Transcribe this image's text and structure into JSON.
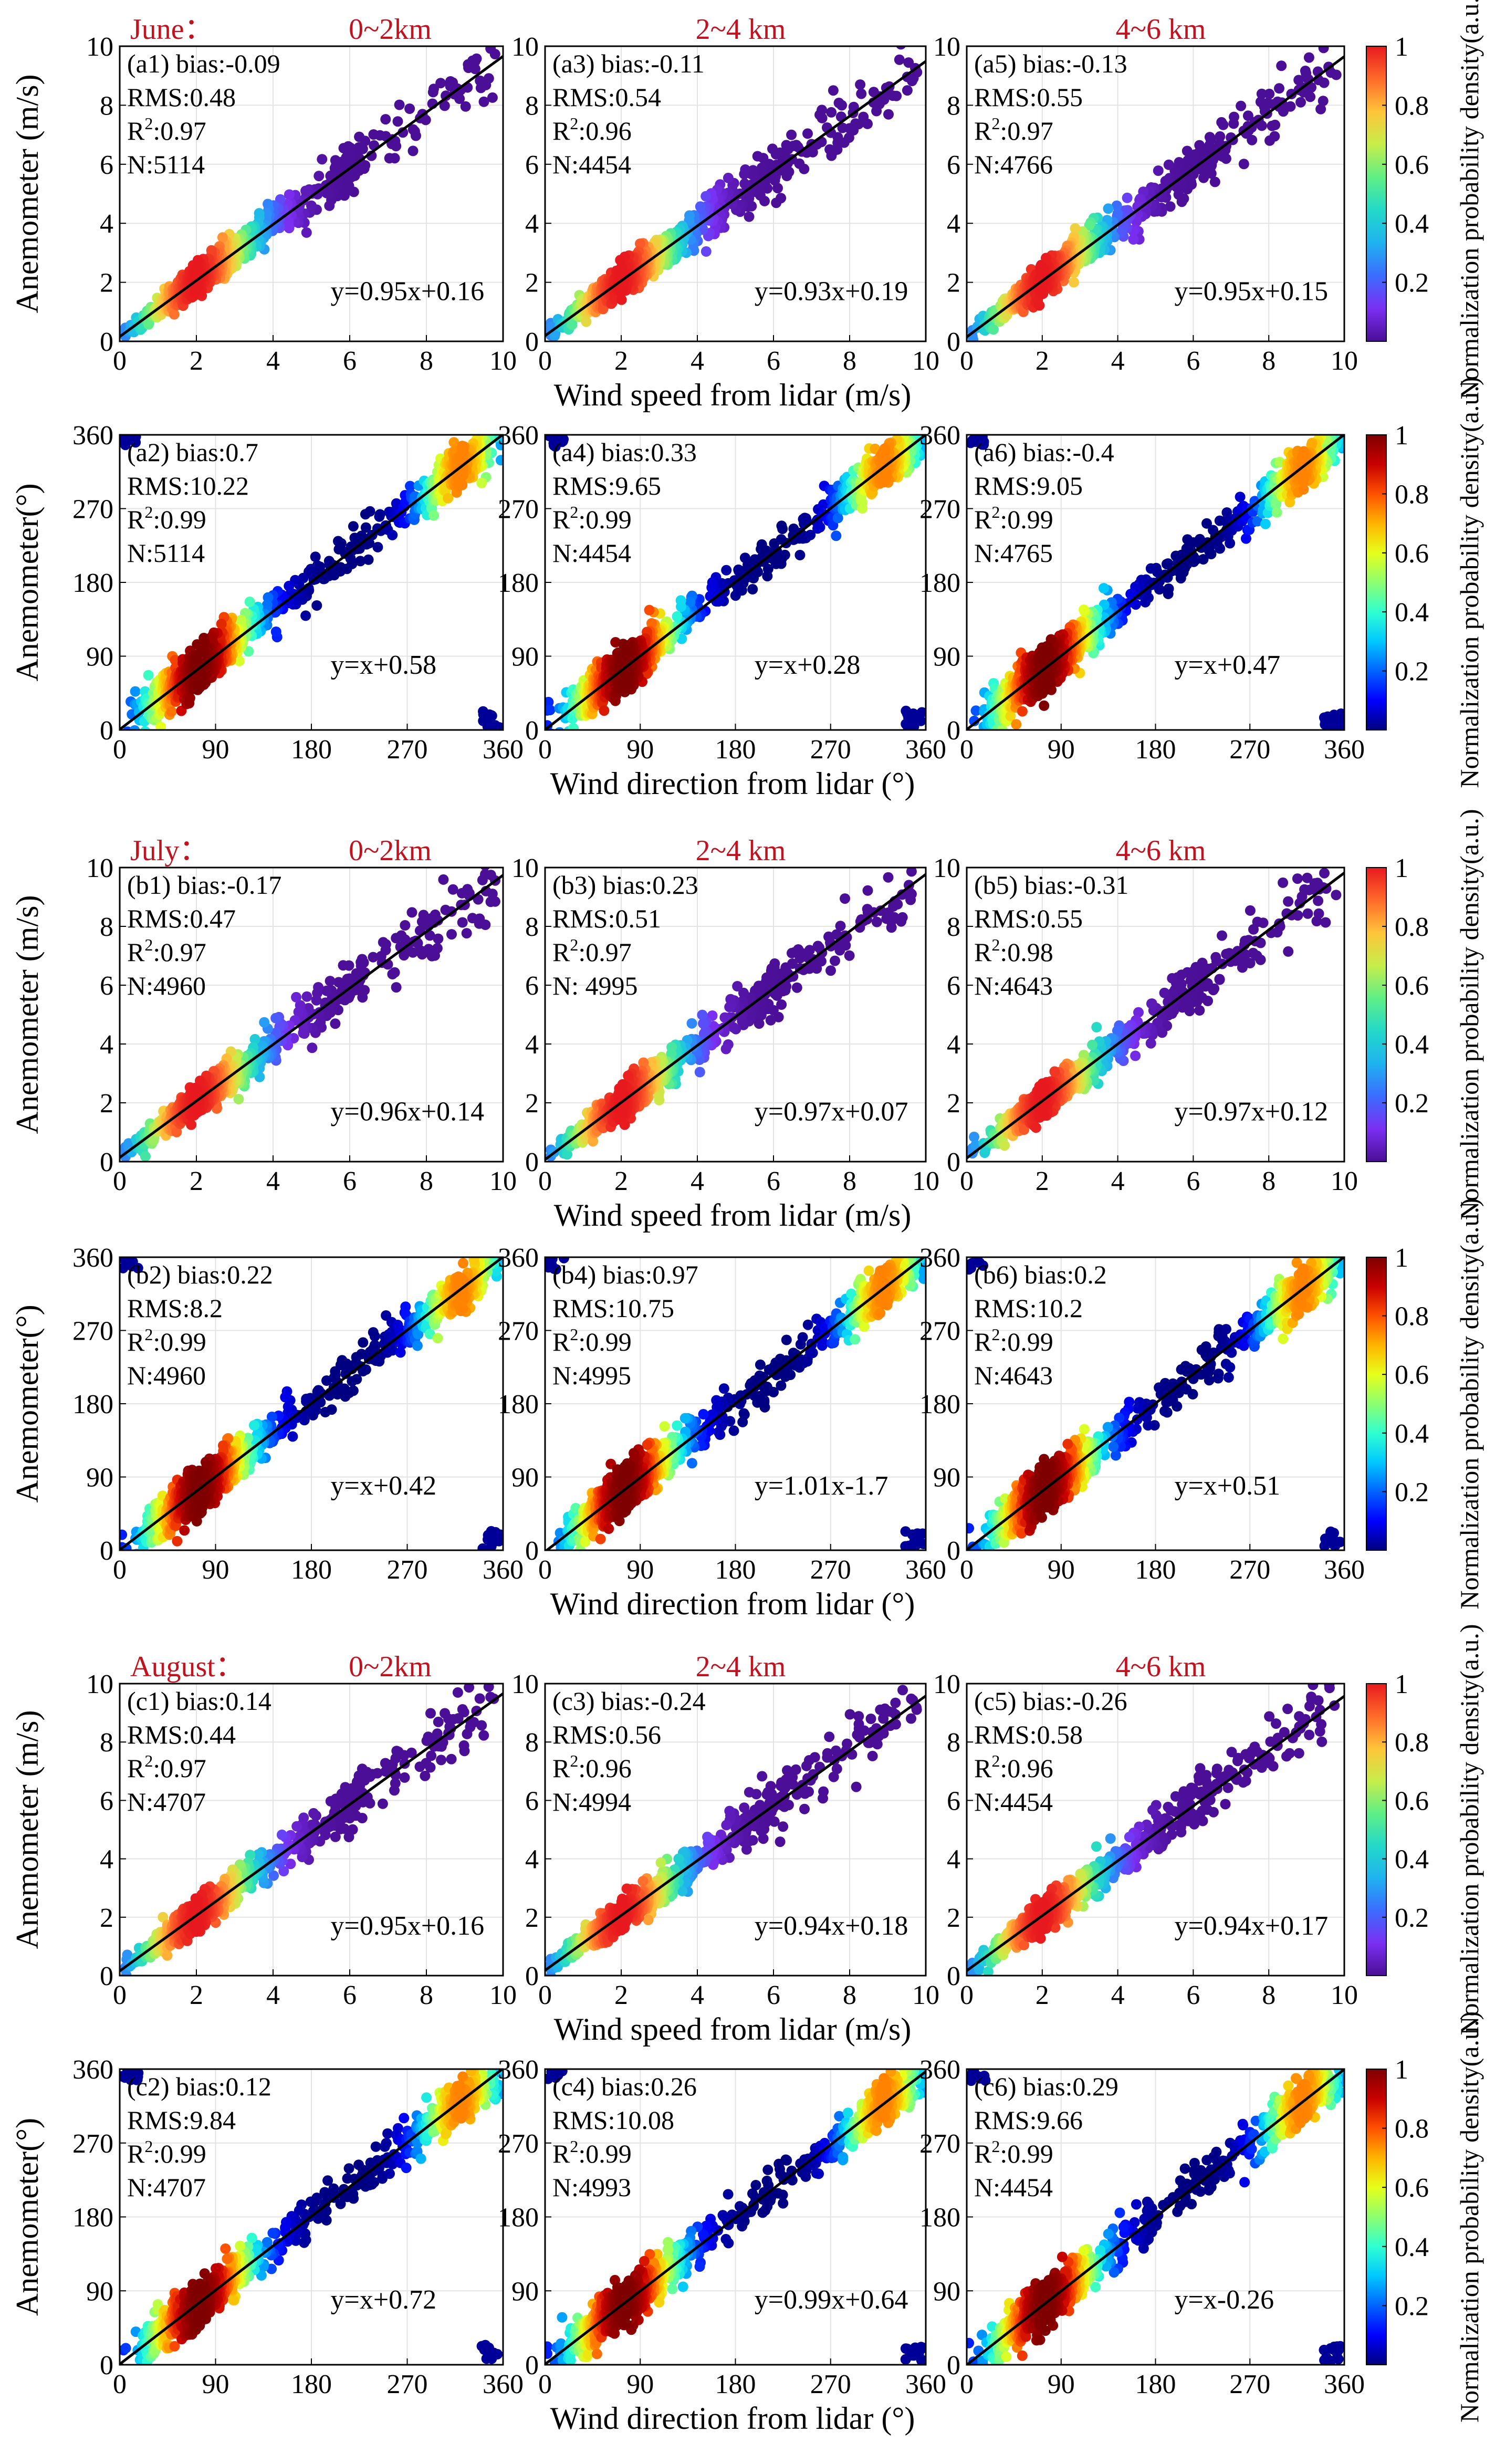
{
  "colors": {
    "cmap_speed": [
      "#4b0e96",
      "#7b2ff2",
      "#3b6cff",
      "#1fb2f0",
      "#23d9c9",
      "#5fef86",
      "#c6ee4a",
      "#ffc43a",
      "#ff6a2a",
      "#e8191e"
    ],
    "cmap_dir": [
      "#00007f",
      "#0000ff",
      "#0064ff",
      "#00c8ff",
      "#30ffd0",
      "#8cff70",
      "#e6ff1a",
      "#ffb400",
      "#ff5000",
      "#c80000",
      "#7f0000"
    ],
    "title_red": "#c1121f",
    "fit_line": "#000000"
  },
  "chart_data": [
    {
      "id": "a1",
      "type": "scatter",
      "variable": "speed",
      "month": "June",
      "layer": "0~2km",
      "header": "June：",
      "title": "0~2km",
      "stats": {
        "panel": "(a1)",
        "bias": "-0.09",
        "rms": "0.48",
        "r2": "0.97",
        "n": "5114"
      },
      "fit": {
        "slope": 0.95,
        "intercept": 0.16,
        "label": "y=0.95x+0.16"
      },
      "xlim": [
        0,
        10
      ],
      "ylim": [
        0,
        10
      ],
      "ticks": [
        0,
        2,
        4,
        6,
        8,
        10
      ],
      "xlabel": "Wind speed from lidar (m/s)",
      "ylabel": "Anemometer (m/s)",
      "colorbar": {
        "ticks": [
          "1",
          "0.8",
          "0.6",
          "0.4",
          "0.2"
        ],
        "label": "Normalization probability density(a.u.)"
      }
    },
    {
      "id": "a3",
      "type": "scatter",
      "variable": "speed",
      "month": "June",
      "layer": "2~4 km",
      "title": "2~4 km",
      "stats": {
        "panel": "(a3)",
        "bias": "-0.11",
        "rms": "0.54",
        "r2": "0.96",
        "n": "4454"
      },
      "fit": {
        "slope": 0.93,
        "intercept": 0.19,
        "label": "y=0.93x+0.19"
      },
      "xlim": [
        0,
        10
      ],
      "ylim": [
        0,
        10
      ],
      "ticks": [
        0,
        2,
        4,
        6,
        8,
        10
      ]
    },
    {
      "id": "a5",
      "type": "scatter",
      "variable": "speed",
      "month": "June",
      "layer": "4~6 km",
      "title": "4~6  km",
      "stats": {
        "panel": "(a5)",
        "bias": "-0.13",
        "rms": "0.55",
        "r2": "0.97",
        "n": "4766"
      },
      "fit": {
        "slope": 0.95,
        "intercept": 0.15,
        "label": "y=0.95x+0.15"
      },
      "xlim": [
        0,
        10
      ],
      "ylim": [
        0,
        10
      ],
      "ticks": [
        0,
        2,
        4,
        6,
        8,
        10
      ]
    },
    {
      "id": "a2",
      "type": "scatter",
      "variable": "direction",
      "month": "June",
      "layer": "0~2km",
      "stats": {
        "panel": "(a2)",
        "bias": "0.7",
        "rms": "10.22",
        "r2": "0.99",
        "n": "5114"
      },
      "fit": {
        "slope": 1.0,
        "intercept": 0.58,
        "label": "y=x+0.58"
      },
      "xlim": [
        0,
        360
      ],
      "ylim": [
        0,
        360
      ],
      "ticks": [
        0,
        90,
        180,
        270,
        360
      ],
      "xlabel": "Wind direction from lidar (°)",
      "ylabel": "Anemometer(°)",
      "colorbar": {
        "ticks": [
          "1",
          "0.8",
          "0.6",
          "0.4",
          "0.2"
        ],
        "label": "Normalization probability density(a.u.)"
      }
    },
    {
      "id": "a4",
      "type": "scatter",
      "variable": "direction",
      "month": "June",
      "layer": "2~4 km",
      "stats": {
        "panel": "(a4)",
        "bias": "0.33",
        "rms": "9.65",
        "r2": "0.99",
        "n": "4454"
      },
      "fit": {
        "slope": 1.0,
        "intercept": 0.28,
        "label": "y=x+0.28"
      },
      "xlim": [
        0,
        360
      ],
      "ylim": [
        0,
        360
      ],
      "ticks": [
        0,
        90,
        180,
        270,
        360
      ]
    },
    {
      "id": "a6",
      "type": "scatter",
      "variable": "direction",
      "month": "June",
      "layer": "4~6 km",
      "stats": {
        "panel": "(a6)",
        "bias": "-0.4",
        "rms": "9.05",
        "r2": "0.99",
        "n": "4765"
      },
      "fit": {
        "slope": 1.0,
        "intercept": 0.47,
        "label": "y=x+0.47"
      },
      "xlim": [
        0,
        360
      ],
      "ylim": [
        0,
        360
      ],
      "ticks": [
        0,
        90,
        180,
        270,
        360
      ]
    },
    {
      "id": "b1",
      "type": "scatter",
      "variable": "speed",
      "month": "July",
      "layer": "0~2km",
      "header": "July：",
      "title": "0~2km",
      "stats": {
        "panel": "(b1)",
        "bias": "-0.17",
        "rms": "0.47",
        "r2": "0.97",
        "n": "4960"
      },
      "fit": {
        "slope": 0.96,
        "intercept": 0.14,
        "label": "y=0.96x+0.14"
      },
      "xlim": [
        0,
        10
      ],
      "ylim": [
        0,
        10
      ],
      "ticks": [
        0,
        2,
        4,
        6,
        8,
        10
      ],
      "xlabel": "Wind speed from lidar (m/s)",
      "ylabel": "Anemometer (m/s)",
      "colorbar": {
        "ticks": [
          "1",
          "0.8",
          "0.6",
          "0.4",
          "0.2"
        ],
        "label": "Normalization probability density(a.u.)"
      }
    },
    {
      "id": "b3",
      "type": "scatter",
      "variable": "speed",
      "month": "July",
      "layer": "2~4 km",
      "title": "2~4 km",
      "stats": {
        "panel": "(b3)",
        "bias": "0.23",
        "rms": "0.51",
        "r2": "0.97",
        "n": " 4995"
      },
      "fit": {
        "slope": 0.97,
        "intercept": 0.07,
        "label": "y=0.97x+0.07"
      },
      "xlim": [
        0,
        10
      ],
      "ylim": [
        0,
        10
      ],
      "ticks": [
        0,
        2,
        4,
        6,
        8,
        10
      ]
    },
    {
      "id": "b5",
      "type": "scatter",
      "variable": "speed",
      "month": "July",
      "layer": "4~6 km",
      "title": "4~6  km",
      "stats": {
        "panel": "(b5)",
        "bias": "-0.31",
        "rms": "0.55",
        "r2": "0.98",
        "n": "4643"
      },
      "fit": {
        "slope": 0.97,
        "intercept": 0.12,
        "label": "y=0.97x+0.12"
      },
      "xlim": [
        0,
        10
      ],
      "ylim": [
        0,
        10
      ],
      "ticks": [
        0,
        2,
        4,
        6,
        8,
        10
      ]
    },
    {
      "id": "b2",
      "type": "scatter",
      "variable": "direction",
      "month": "July",
      "layer": "0~2km",
      "stats": {
        "panel": "(b2)",
        "bias": "0.22",
        "rms": "8.2",
        "r2": "0.99",
        "n": "4960"
      },
      "fit": {
        "slope": 1.0,
        "intercept": 0.42,
        "label": "y=x+0.42"
      },
      "xlim": [
        0,
        360
      ],
      "ylim": [
        0,
        360
      ],
      "ticks": [
        0,
        90,
        180,
        270,
        360
      ],
      "xlabel": "Wind direction from lidar (°)",
      "ylabel": "Anemometer(°)",
      "colorbar": {
        "ticks": [
          "1",
          "0.8",
          "0.6",
          "0.4",
          "0.2"
        ],
        "label": "Normalization probability density(a.u.)"
      }
    },
    {
      "id": "b4",
      "type": "scatter",
      "variable": "direction",
      "month": "July",
      "layer": "2~4 km",
      "stats": {
        "panel": "(b4)",
        "bias": "0.97",
        "rms": "10.75",
        "r2": "0.99",
        "n": "4995"
      },
      "fit": {
        "slope": 1.01,
        "intercept": -1.7,
        "label": "y=1.01x-1.7"
      },
      "xlim": [
        0,
        360
      ],
      "ylim": [
        0,
        360
      ],
      "ticks": [
        0,
        90,
        180,
        270,
        360
      ]
    },
    {
      "id": "b6",
      "type": "scatter",
      "variable": "direction",
      "month": "July",
      "layer": "4~6 km",
      "stats": {
        "panel": "(b6)",
        "bias": "0.2",
        "rms": "10.2",
        "r2": "0.99",
        "n": "4643"
      },
      "fit": {
        "slope": 1.0,
        "intercept": 0.51,
        "label": "y=x+0.51"
      },
      "xlim": [
        0,
        360
      ],
      "ylim": [
        0,
        360
      ],
      "ticks": [
        0,
        90,
        180,
        270,
        360
      ]
    },
    {
      "id": "c1",
      "type": "scatter",
      "variable": "speed",
      "month": "August",
      "layer": "0~2km",
      "header": "August：",
      "title": "0~2km",
      "stats": {
        "panel": "(c1)",
        "bias": "0.14",
        "rms": "0.44",
        "r2": "0.97",
        "n": "4707"
      },
      "fit": {
        "slope": 0.95,
        "intercept": 0.16,
        "label": "y=0.95x+0.16"
      },
      "xlim": [
        0,
        10
      ],
      "ylim": [
        0,
        10
      ],
      "ticks": [
        0,
        2,
        4,
        6,
        8,
        10
      ],
      "xlabel": "Wind speed from lidar (m/s)",
      "ylabel": "Anemometer (m/s)",
      "colorbar": {
        "ticks": [
          "1",
          "0.8",
          "0.6",
          "0.4",
          "0.2"
        ],
        "label": "Normalization probability density(a.u.)"
      }
    },
    {
      "id": "c3",
      "type": "scatter",
      "variable": "speed",
      "month": "August",
      "layer": "2~4 km",
      "title": "2~4 km",
      "stats": {
        "panel": "(c3)",
        "bias": "-0.24",
        "rms": "0.56",
        "r2": "0.96",
        "n": "4994"
      },
      "fit": {
        "slope": 0.94,
        "intercept": 0.18,
        "label": "y=0.94x+0.18"
      },
      "xlim": [
        0,
        10
      ],
      "ylim": [
        0,
        10
      ],
      "ticks": [
        0,
        2,
        4,
        6,
        8,
        10
      ]
    },
    {
      "id": "c5",
      "type": "scatter",
      "variable": "speed",
      "month": "August",
      "layer": "4~6 km",
      "title": "4~6  km",
      "stats": {
        "panel": "(c5)",
        "bias": "-0.26",
        "rms": "0.58",
        "r2": "0.96",
        "n": "4454"
      },
      "fit": {
        "slope": 0.94,
        "intercept": 0.17,
        "label": "y=0.94x+0.17"
      },
      "xlim": [
        0,
        10
      ],
      "ylim": [
        0,
        10
      ],
      "ticks": [
        0,
        2,
        4,
        6,
        8,
        10
      ]
    },
    {
      "id": "c2",
      "type": "scatter",
      "variable": "direction",
      "month": "August",
      "layer": "0~2km",
      "stats": {
        "panel": "(c2)",
        "bias": "0.12",
        "rms": "9.84",
        "r2": "0.99",
        "n": "4707"
      },
      "fit": {
        "slope": 1.0,
        "intercept": 0.72,
        "label": "y=x+0.72"
      },
      "xlim": [
        0,
        360
      ],
      "ylim": [
        0,
        360
      ],
      "ticks": [
        0,
        90,
        180,
        270,
        360
      ],
      "xlabel": "Wind direction from lidar (°)",
      "ylabel": "Anemometer(°)",
      "colorbar": {
        "ticks": [
          "1",
          "0.8",
          "0.6",
          "0.4",
          "0.2"
        ],
        "label": "Normalization probability density(a.u.)"
      }
    },
    {
      "id": "c4",
      "type": "scatter",
      "variable": "direction",
      "month": "August",
      "layer": "2~4 km",
      "stats": {
        "panel": "(c4)",
        "bias": "0.26",
        "rms": "10.08",
        "r2": "0.99",
        "n": "4993"
      },
      "fit": {
        "slope": 0.99,
        "intercept": 0.64,
        "label": "y=0.99x+0.64"
      },
      "xlim": [
        0,
        360
      ],
      "ylim": [
        0,
        360
      ],
      "ticks": [
        0,
        90,
        180,
        270,
        360
      ]
    },
    {
      "id": "c6",
      "type": "scatter",
      "variable": "direction",
      "month": "August",
      "layer": "4~6 km",
      "stats": {
        "panel": "(c6)",
        "bias": "0.29",
        "rms": "9.66",
        "r2": "0.99",
        "n": "4454"
      },
      "fit": {
        "slope": 1.0,
        "intercept": -0.26,
        "label": "y=x-0.26"
      },
      "xlim": [
        0,
        360
      ],
      "ylim": [
        0,
        360
      ],
      "ticks": [
        0,
        90,
        180,
        270,
        360
      ]
    }
  ]
}
